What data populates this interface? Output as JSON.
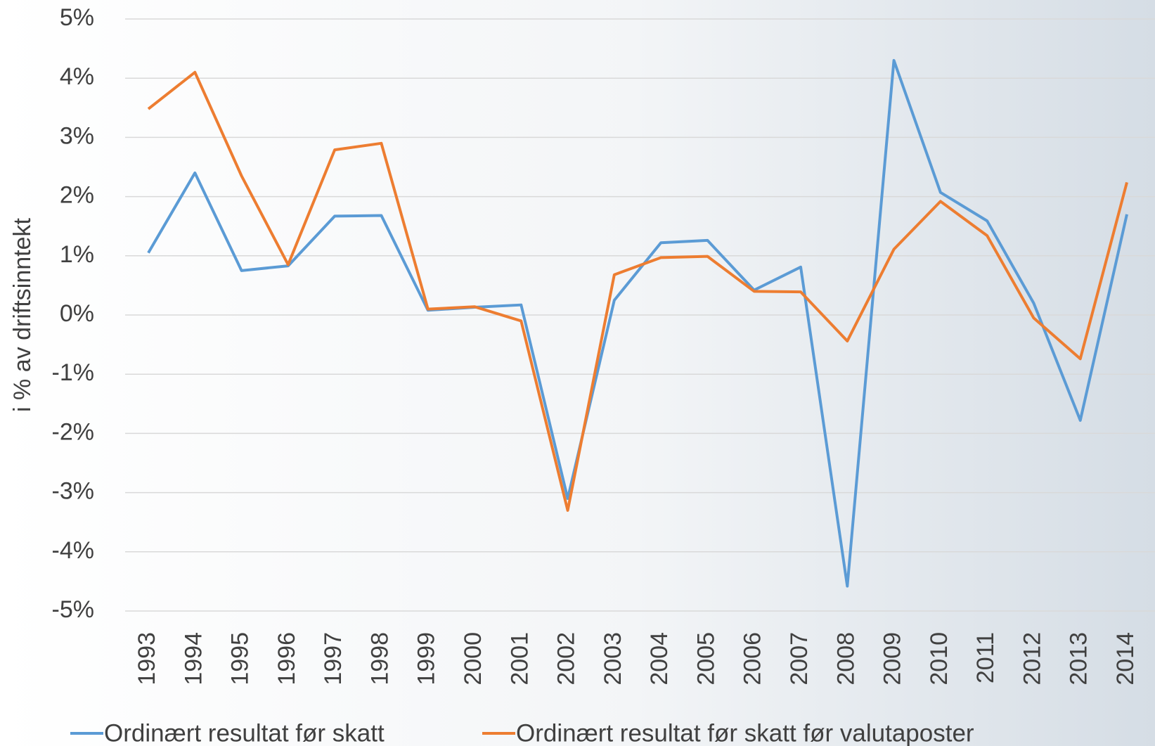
{
  "chart_data": {
    "type": "line",
    "y_label": "i % av driftsinntekt",
    "categories": [
      "1993",
      "1994",
      "1995",
      "1996",
      "1997",
      "1998",
      "1999",
      "2000",
      "2001",
      "2002",
      "2003",
      "2004",
      "2005",
      "2006",
      "2007",
      "2008",
      "2009",
      "2010",
      "2011",
      "2012",
      "2013",
      "2014"
    ],
    "series": [
      {
        "name": "Ordinært resultat før skatt",
        "color": "#5b9bd5",
        "values": [
          1.05,
          2.4,
          0.75,
          0.83,
          1.67,
          1.68,
          0.08,
          0.13,
          0.17,
          -3.1,
          0.25,
          1.22,
          1.26,
          0.42,
          0.81,
          -4.58,
          4.3,
          2.07,
          1.59,
          0.2,
          -1.78,
          1.7
        ]
      },
      {
        "name": "Ordinært resultat før skatt før valutaposter",
        "color": "#ed7d31",
        "values": [
          3.48,
          4.1,
          2.35,
          0.85,
          2.79,
          2.9,
          0.1,
          0.14,
          -0.1,
          -3.3,
          0.68,
          0.97,
          0.99,
          0.4,
          0.39,
          -0.44,
          1.11,
          1.92,
          1.34,
          -0.05,
          -0.74,
          2.24
        ]
      }
    ],
    "ylim": [
      -5,
      5
    ],
    "yticks": [
      {
        "value": -5,
        "label": "-5%"
      },
      {
        "value": -4,
        "label": "-4%"
      },
      {
        "value": -3,
        "label": "-3%"
      },
      {
        "value": -2,
        "label": "-2%"
      },
      {
        "value": -1,
        "label": "-1%"
      },
      {
        "value": 0,
        "label": "0%"
      },
      {
        "value": 1,
        "label": "1%"
      },
      {
        "value": 2,
        "label": "2%"
      },
      {
        "value": 3,
        "label": "3%"
      },
      {
        "value": 4,
        "label": "4%"
      },
      {
        "value": 5,
        "label": "5%"
      }
    ],
    "grid": true,
    "legend": "bottom"
  }
}
